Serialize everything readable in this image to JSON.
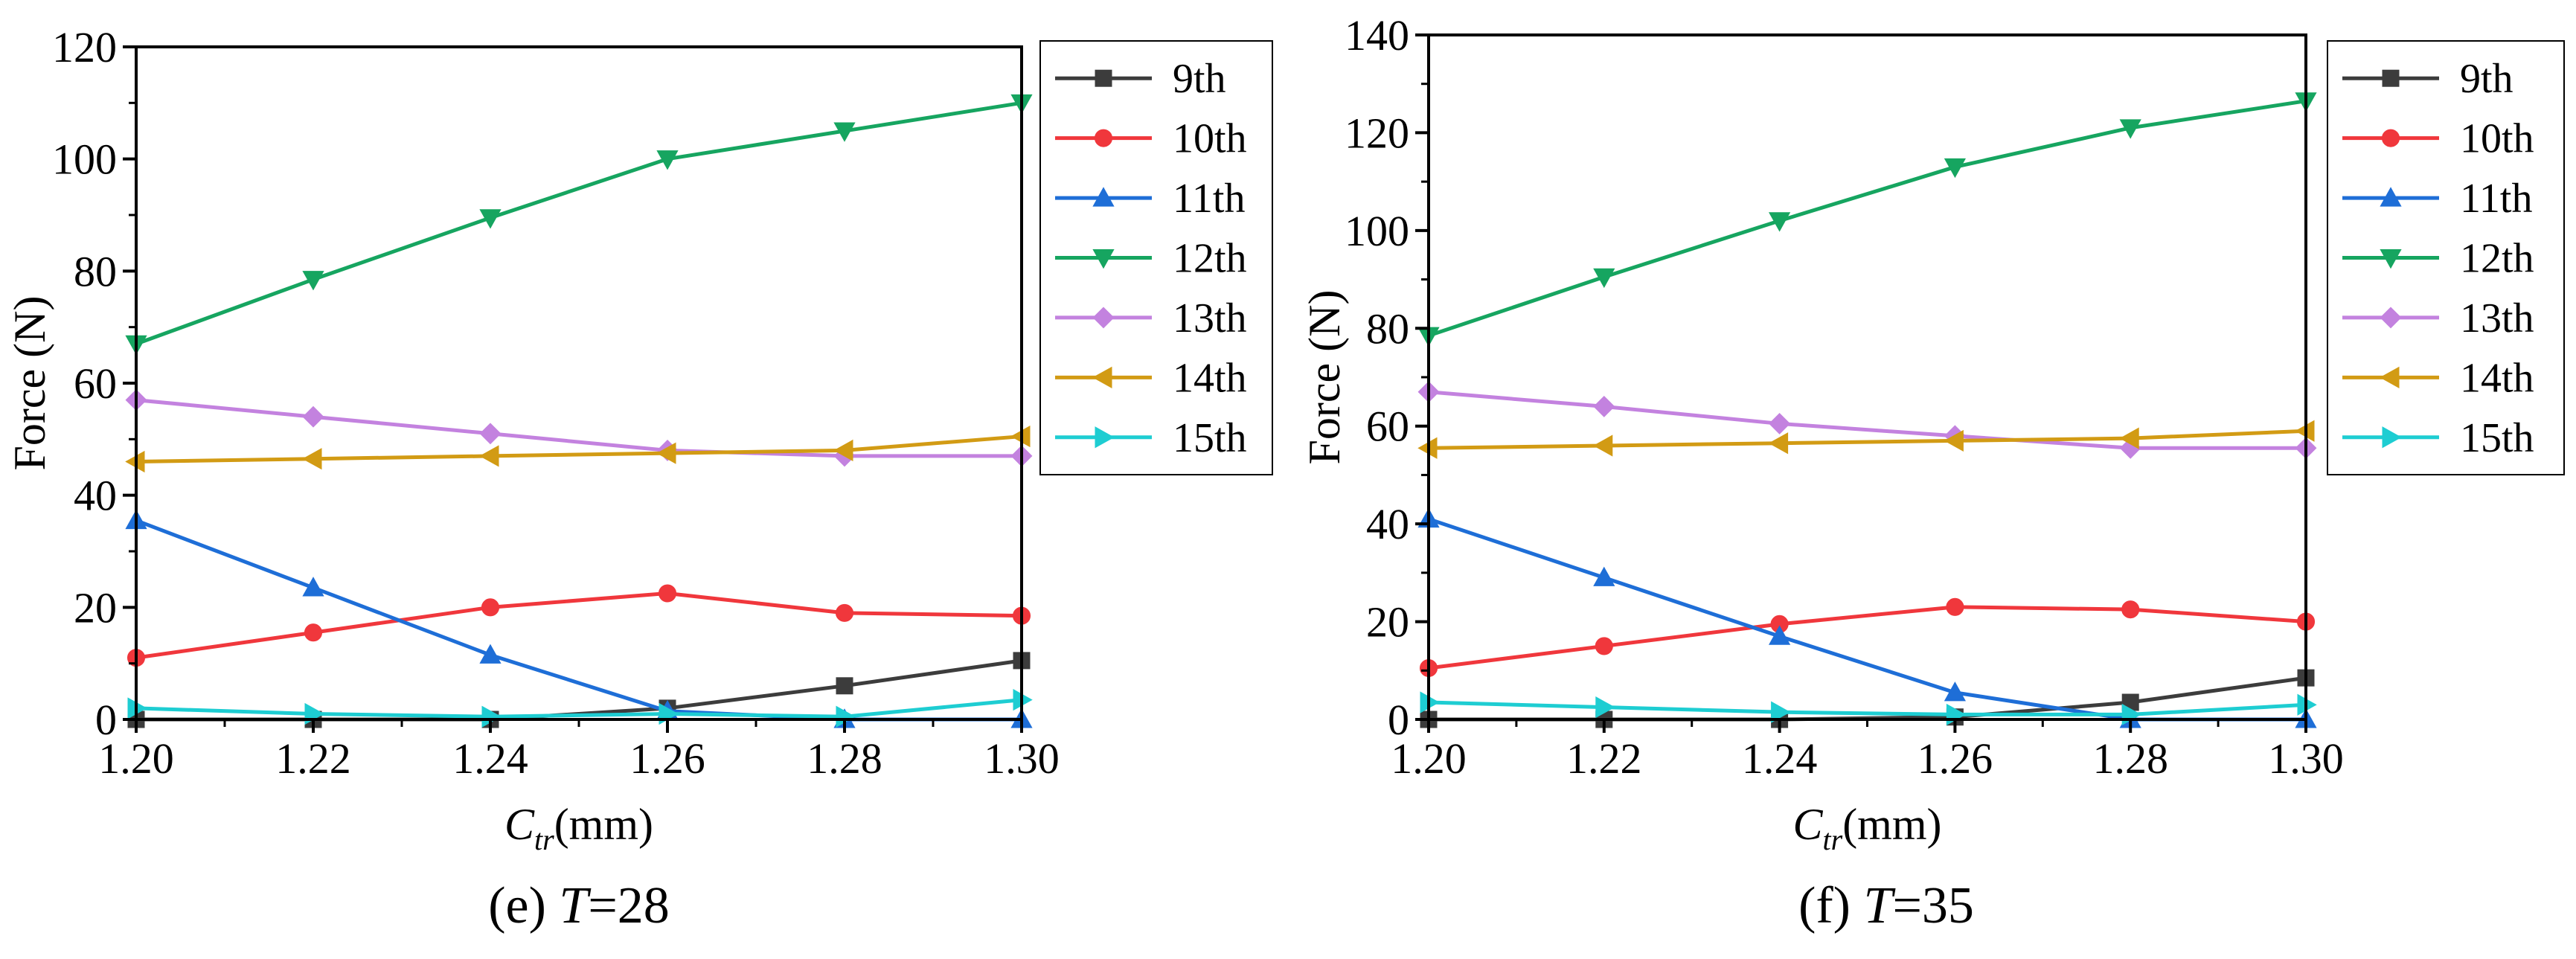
{
  "colors": {
    "9th": "#3c3c3c",
    "10th": "#f0373c",
    "11th": "#1e6ed7",
    "12th": "#16a560",
    "13th": "#c382df",
    "14th": "#d29b14",
    "15th": "#1ecdd2"
  },
  "chart_data": [
    {
      "type": "line",
      "caption_prefix": "(e) ",
      "caption_var": "T",
      "caption_suffix": "=28",
      "xlabel_main": "C",
      "xlabel_sub": "tr",
      "xlabel_unit": "(mm)",
      "ylabel": "Force (N)",
      "xlim": [
        1.2,
        1.3
      ],
      "ylim": [
        0,
        120
      ],
      "x_ticks": [
        "1.20",
        "1.22",
        "1.24",
        "1.26",
        "1.28",
        "1.30"
      ],
      "y_ticks": [
        "0",
        "20",
        "40",
        "60",
        "80",
        "100",
        "120"
      ],
      "x": [
        1.2,
        1.22,
        1.24,
        1.26,
        1.28,
        1.3
      ],
      "series": [
        {
          "name": "9th",
          "marker": "square",
          "values": [
            0,
            0,
            0,
            2,
            6,
            10.5
          ]
        },
        {
          "name": "10th",
          "marker": "circle",
          "values": [
            11,
            15.5,
            20,
            22.5,
            19,
            18.5
          ]
        },
        {
          "name": "11th",
          "marker": "triangle-up",
          "values": [
            35.5,
            23.5,
            11.5,
            1.5,
            0,
            0
          ]
        },
        {
          "name": "12th",
          "marker": "triangle-down",
          "values": [
            67,
            78.5,
            89.5,
            100,
            105,
            110
          ]
        },
        {
          "name": "13th",
          "marker": "diamond",
          "values": [
            57,
            54,
            51,
            48,
            47,
            47
          ]
        },
        {
          "name": "14th",
          "marker": "triangle-left",
          "values": [
            46,
            46.5,
            47,
            47.5,
            48,
            50.5
          ]
        },
        {
          "name": "15th",
          "marker": "triangle-right",
          "values": [
            2,
            1,
            0.5,
            1,
            0.5,
            3.5
          ]
        }
      ]
    },
    {
      "type": "line",
      "caption_prefix": "(f) ",
      "caption_var": "T",
      "caption_suffix": "=35",
      "xlabel_main": "C",
      "xlabel_sub": "tr",
      "xlabel_unit": "(mm)",
      "ylabel": "Force (N)",
      "xlim": [
        1.2,
        1.3
      ],
      "ylim": [
        0,
        140
      ],
      "x_ticks": [
        "1.20",
        "1.22",
        "1.24",
        "1.26",
        "1.28",
        "1.30"
      ],
      "y_ticks": [
        "0",
        "20",
        "40",
        "60",
        "80",
        "100",
        "120",
        "140"
      ],
      "x": [
        1.2,
        1.22,
        1.24,
        1.26,
        1.28,
        1.3
      ],
      "series": [
        {
          "name": "9th",
          "marker": "square",
          "values": [
            0,
            0,
            0,
            0.5,
            3.5,
            8.5
          ]
        },
        {
          "name": "10th",
          "marker": "circle",
          "values": [
            10.5,
            15,
            19.5,
            23,
            22.5,
            20
          ]
        },
        {
          "name": "11th",
          "marker": "triangle-up",
          "values": [
            41,
            29,
            17,
            5.5,
            0,
            0
          ]
        },
        {
          "name": "12th",
          "marker": "triangle-down",
          "values": [
            78.5,
            90.5,
            102,
            113,
            121,
            126.5
          ]
        },
        {
          "name": "13th",
          "marker": "diamond",
          "values": [
            67,
            64,
            60.5,
            58,
            55.5,
            55.5
          ]
        },
        {
          "name": "14th",
          "marker": "triangle-left",
          "values": [
            55.5,
            56,
            56.5,
            57,
            57.5,
            59
          ]
        },
        {
          "name": "15th",
          "marker": "triangle-right",
          "values": [
            3.5,
            2.5,
            1.5,
            1,
            1,
            3
          ]
        }
      ]
    }
  ]
}
